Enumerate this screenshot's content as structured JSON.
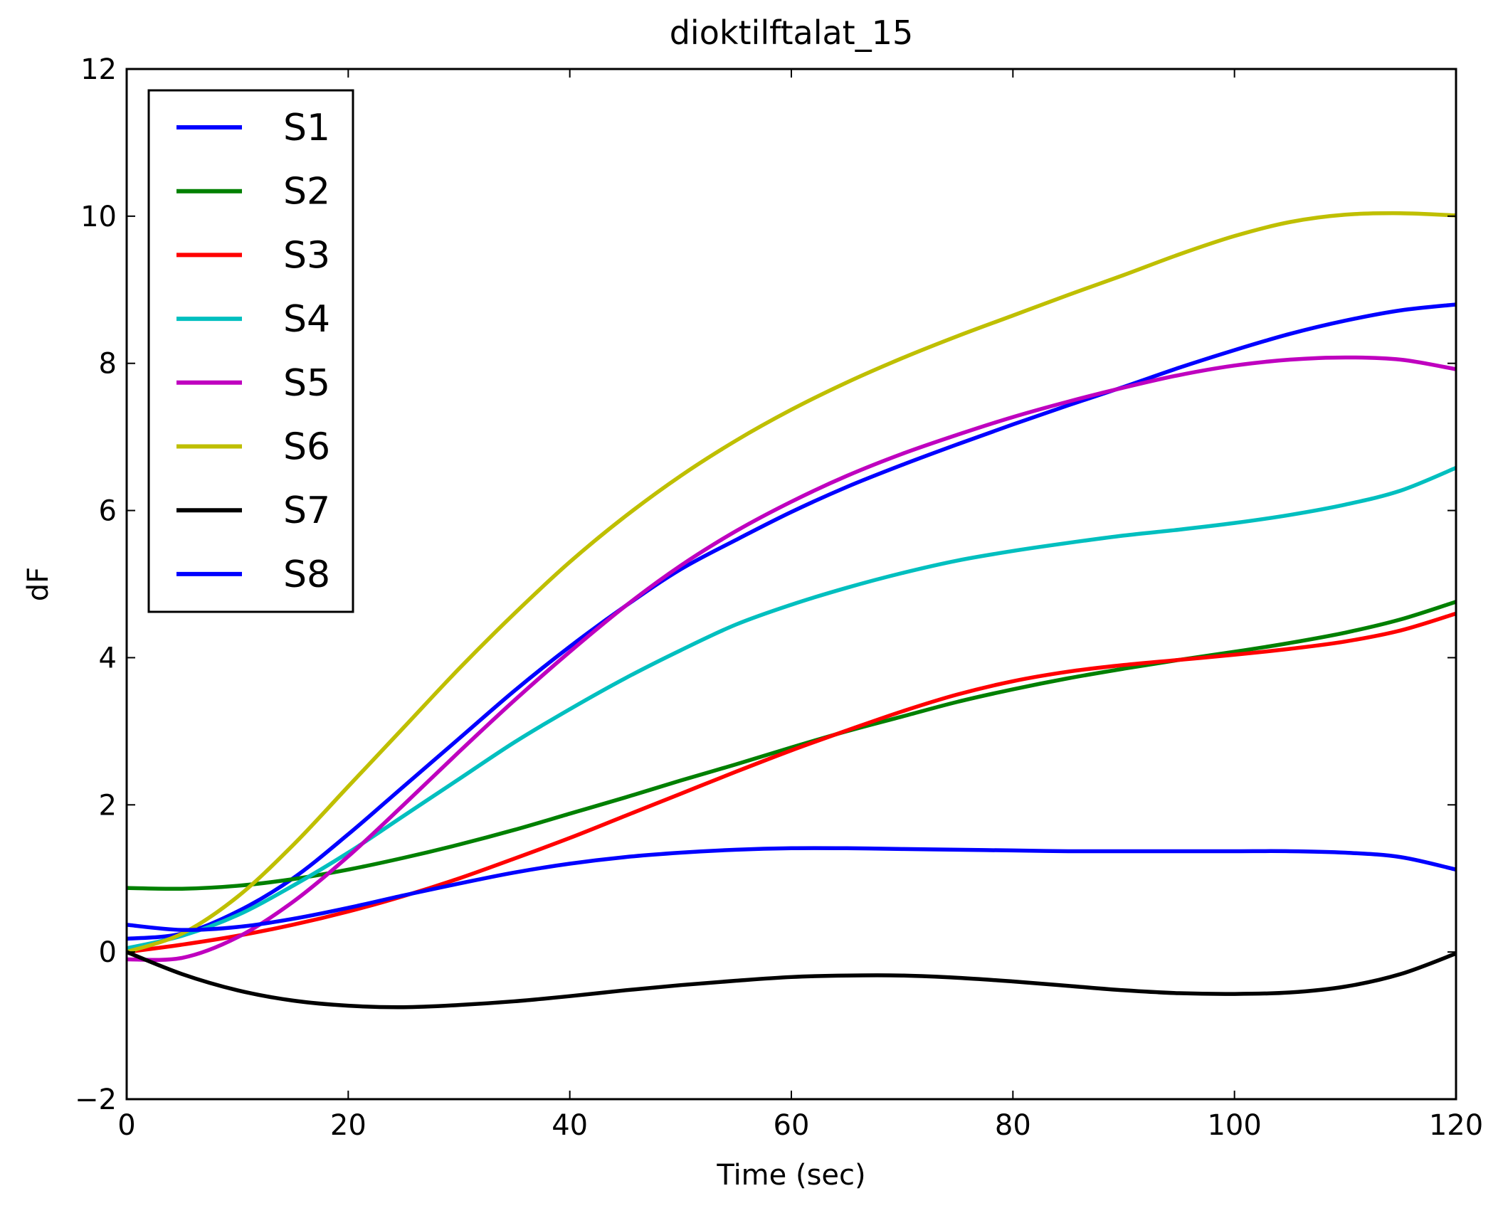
{
  "chart_data": {
    "type": "line",
    "title": "dioktilftalat_15",
    "xlabel": "Time (sec)",
    "ylabel": "dF",
    "xlim": [
      0,
      120
    ],
    "ylim": [
      -2,
      12
    ],
    "xticks": [
      0,
      20,
      40,
      60,
      80,
      100,
      120
    ],
    "yticks": [
      -2,
      0,
      2,
      4,
      6,
      8,
      10,
      12
    ],
    "xtick_labels": [
      "0",
      "20",
      "40",
      "60",
      "80",
      "100",
      "120"
    ],
    "ytick_labels": [
      "−2",
      "0",
      "2",
      "4",
      "6",
      "8",
      "10",
      "12"
    ],
    "grid": false,
    "legend_position": "top-left",
    "series": [
      {
        "name": "S1",
        "color": "#0000ff",
        "x": [
          0,
          5,
          10,
          15,
          20,
          25,
          30,
          35,
          40,
          45,
          50,
          55,
          60,
          65,
          70,
          75,
          80,
          85,
          90,
          95,
          100,
          105,
          110,
          115,
          120
        ],
        "y": [
          0.18,
          0.25,
          0.55,
          1.0,
          1.6,
          2.25,
          2.9,
          3.55,
          4.15,
          4.7,
          5.2,
          5.6,
          5.98,
          6.32,
          6.62,
          6.9,
          7.17,
          7.43,
          7.68,
          7.94,
          8.18,
          8.4,
          8.58,
          8.72,
          8.8
        ]
      },
      {
        "name": "S2",
        "color": "#008000",
        "x": [
          0,
          5,
          10,
          15,
          20,
          25,
          30,
          35,
          40,
          45,
          50,
          55,
          60,
          65,
          70,
          75,
          80,
          85,
          90,
          95,
          100,
          105,
          110,
          115,
          120
        ],
        "y": [
          0.87,
          0.86,
          0.9,
          0.99,
          1.12,
          1.28,
          1.46,
          1.66,
          1.88,
          2.1,
          2.33,
          2.55,
          2.78,
          3.0,
          3.2,
          3.4,
          3.57,
          3.72,
          3.85,
          3.97,
          4.08,
          4.2,
          4.34,
          4.52,
          4.76
        ]
      },
      {
        "name": "S3",
        "color": "#ff0000",
        "x": [
          0,
          5,
          10,
          15,
          20,
          25,
          30,
          35,
          40,
          45,
          50,
          55,
          60,
          65,
          70,
          75,
          80,
          85,
          90,
          95,
          100,
          105,
          110,
          115,
          120
        ],
        "y": [
          0.0,
          0.1,
          0.22,
          0.37,
          0.55,
          0.76,
          1.0,
          1.27,
          1.55,
          1.85,
          2.15,
          2.45,
          2.74,
          3.01,
          3.27,
          3.5,
          3.68,
          3.81,
          3.9,
          3.97,
          4.04,
          4.12,
          4.22,
          4.37,
          4.6
        ]
      },
      {
        "name": "S4",
        "color": "#00bfbf",
        "x": [
          0,
          5,
          10,
          15,
          20,
          25,
          30,
          35,
          40,
          45,
          50,
          55,
          60,
          65,
          70,
          75,
          80,
          85,
          90,
          95,
          100,
          105,
          110,
          115,
          120
        ],
        "y": [
          0.05,
          0.22,
          0.5,
          0.9,
          1.35,
          1.85,
          2.35,
          2.85,
          3.3,
          3.72,
          4.1,
          4.45,
          4.72,
          4.95,
          5.15,
          5.32,
          5.45,
          5.56,
          5.66,
          5.74,
          5.83,
          5.94,
          6.08,
          6.27,
          6.58
        ]
      },
      {
        "name": "S5",
        "color": "#bf00bf",
        "x": [
          0,
          5,
          10,
          15,
          20,
          25,
          30,
          35,
          40,
          45,
          50,
          55,
          60,
          65,
          70,
          75,
          80,
          85,
          90,
          95,
          100,
          105,
          110,
          115,
          120
        ],
        "y": [
          -0.1,
          -0.08,
          0.2,
          0.68,
          1.3,
          2.0,
          2.72,
          3.42,
          4.08,
          4.7,
          5.25,
          5.72,
          6.12,
          6.47,
          6.77,
          7.03,
          7.27,
          7.48,
          7.67,
          7.84,
          7.97,
          8.05,
          8.08,
          8.05,
          7.92
        ]
      },
      {
        "name": "S6",
        "color": "#bfbf00",
        "x": [
          0,
          5,
          10,
          15,
          20,
          25,
          30,
          35,
          40,
          45,
          50,
          55,
          60,
          65,
          70,
          75,
          80,
          85,
          90,
          95,
          100,
          105,
          110,
          115,
          120
        ],
        "y": [
          0.0,
          0.25,
          0.75,
          1.45,
          2.25,
          3.05,
          3.85,
          4.6,
          5.3,
          5.92,
          6.47,
          6.95,
          7.37,
          7.74,
          8.07,
          8.37,
          8.65,
          8.93,
          9.2,
          9.48,
          9.73,
          9.92,
          10.02,
          10.04,
          10.01
        ]
      },
      {
        "name": "S7",
        "color": "#000000",
        "x": [
          0,
          5,
          10,
          15,
          20,
          25,
          30,
          35,
          40,
          45,
          50,
          55,
          60,
          65,
          70,
          75,
          80,
          85,
          90,
          95,
          100,
          105,
          110,
          115,
          120
        ],
        "y": [
          0.0,
          -0.3,
          -0.52,
          -0.66,
          -0.73,
          -0.75,
          -0.72,
          -0.67,
          -0.6,
          -0.52,
          -0.45,
          -0.39,
          -0.34,
          -0.32,
          -0.32,
          -0.35,
          -0.4,
          -0.46,
          -0.52,
          -0.56,
          -0.57,
          -0.55,
          -0.47,
          -0.3,
          -0.02
        ]
      },
      {
        "name": "S8",
        "color": "#0000ff",
        "x": [
          0,
          5,
          10,
          15,
          20,
          25,
          30,
          35,
          40,
          45,
          50,
          55,
          60,
          65,
          70,
          75,
          80,
          85,
          90,
          95,
          100,
          105,
          110,
          115,
          120
        ],
        "y": [
          0.37,
          0.3,
          0.34,
          0.45,
          0.6,
          0.77,
          0.93,
          1.08,
          1.2,
          1.29,
          1.35,
          1.39,
          1.41,
          1.41,
          1.4,
          1.39,
          1.38,
          1.37,
          1.37,
          1.37,
          1.37,
          1.37,
          1.35,
          1.29,
          1.12
        ]
      }
    ]
  }
}
